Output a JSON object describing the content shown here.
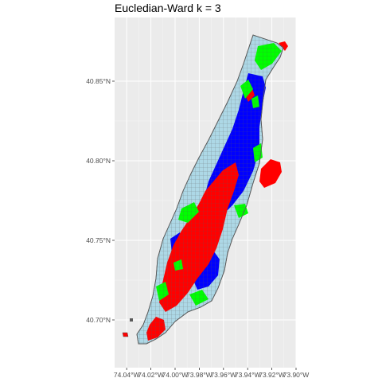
{
  "chart_data": {
    "type": "map",
    "title": "Eucledian-Ward k = 3",
    "xlabel": "",
    "ylabel": "",
    "x_ticks": [
      "74.04°W",
      "74.02°W",
      "74.00°W",
      "73.98°W",
      "73.96°W",
      "73.94°W",
      "73.92°W",
      "73.90°W"
    ],
    "y_ticks": [
      "40.70°N",
      "40.75°N",
      "40.80°N",
      "40.85°N"
    ],
    "x_tick_values": [
      -74.04,
      -74.02,
      -74.0,
      -73.98,
      -73.96,
      -73.94,
      -73.92,
      -73.9
    ],
    "y_tick_values": [
      40.7,
      40.75,
      40.8,
      40.85
    ],
    "xlim": [
      -74.05,
      -73.9
    ],
    "ylim": [
      40.67,
      40.89
    ],
    "grid": true,
    "legend": "none",
    "clusters": 3,
    "colors": {
      "panel_background": "#ebebeb",
      "grid_major": "#ffffff",
      "land_fill": "#add8e6",
      "boundary": "#595959",
      "cluster_1": "#ff0000",
      "cluster_2": "#0000ff",
      "cluster_3": "#00ff00"
    }
  }
}
